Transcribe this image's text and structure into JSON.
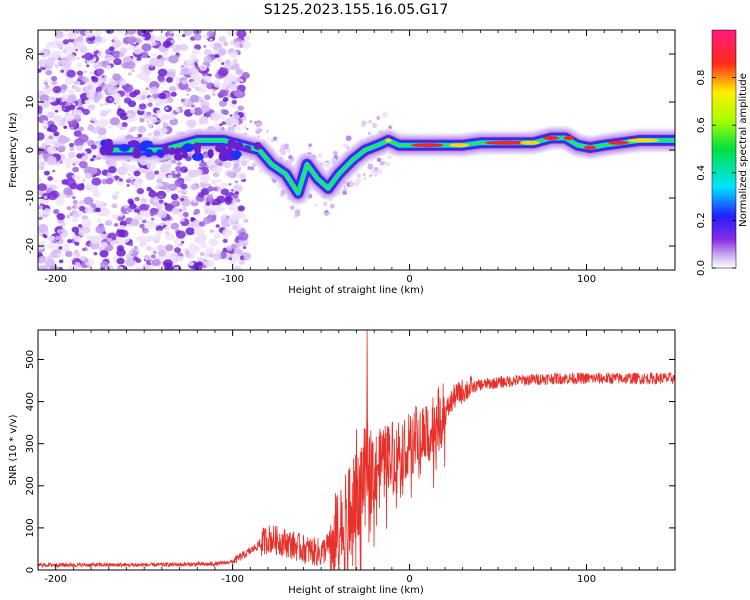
{
  "title": "S125.2023.155.16.05.G17",
  "colors": {
    "snr_line": "#e8302a",
    "axis": "#000000"
  },
  "chart_data": [
    {
      "type": "heatmap",
      "name": "spectrogram",
      "xlabel": "Height of straight line (km)",
      "ylabel": "Frequency (Hz)",
      "xlim": [
        -210,
        150
      ],
      "ylim": [
        -25,
        25
      ],
      "xticks": [
        -200,
        -100,
        0,
        100
      ],
      "yticks": [
        -20,
        -10,
        0,
        10,
        20
      ],
      "ridge": [
        [
          -170,
          0
        ],
        [
          -155,
          0
        ],
        [
          -140,
          0
        ],
        [
          -120,
          2
        ],
        [
          -105,
          2
        ],
        [
          -95,
          1
        ],
        [
          -85,
          0
        ],
        [
          -78,
          -3
        ],
        [
          -70,
          -5
        ],
        [
          -63,
          -9
        ],
        [
          -58,
          -3
        ],
        [
          -52,
          -6
        ],
        [
          -46,
          -8
        ],
        [
          -40,
          -5
        ],
        [
          -32,
          -2
        ],
        [
          -25,
          0
        ],
        [
          -18,
          1
        ],
        [
          -12,
          2
        ],
        [
          -6,
          1
        ],
        [
          0,
          1
        ],
        [
          10,
          1
        ],
        [
          20,
          1
        ],
        [
          30,
          1
        ],
        [
          40,
          1.5
        ],
        [
          50,
          1.5
        ],
        [
          60,
          1.5
        ],
        [
          70,
          1.5
        ],
        [
          80,
          2.5
        ],
        [
          88,
          2.5
        ],
        [
          95,
          1
        ],
        [
          102,
          0.5
        ],
        [
          110,
          1
        ],
        [
          120,
          1.5
        ],
        [
          130,
          2
        ],
        [
          140,
          2
        ],
        [
          150,
          2
        ]
      ],
      "noise_region": [
        -210,
        -100
      ],
      "colorbar": {
        "label": "Normalized spectral amplitude",
        "ticks": [
          "0.0",
          "0.2",
          "0.4",
          "0.6",
          "0.8"
        ],
        "range": [
          0,
          1
        ]
      }
    },
    {
      "type": "line",
      "name": "snr",
      "xlabel": "Height of straight line (km)",
      "ylabel": "SNR (10 * v/v)",
      "xlim": [
        -210,
        150
      ],
      "ylim": [
        0,
        570
      ],
      "xticks": [
        -200,
        -100,
        0,
        100
      ],
      "yticks": [
        0,
        100,
        200,
        300,
        400,
        500
      ],
      "trend": [
        [
          -210,
          12
        ],
        [
          -150,
          12
        ],
        [
          -110,
          14
        ],
        [
          -100,
          20
        ],
        [
          -90,
          45
        ],
        [
          -80,
          75
        ],
        [
          -70,
          65
        ],
        [
          -60,
          50
        ],
        [
          -50,
          40
        ],
        [
          -40,
          85
        ],
        [
          -30,
          170
        ],
        [
          -25,
          240
        ],
        [
          -20,
          245
        ],
        [
          -10,
          280
        ],
        [
          0,
          300
        ],
        [
          10,
          330
        ],
        [
          20,
          370
        ],
        [
          25,
          410
        ],
        [
          30,
          425
        ],
        [
          40,
          440
        ],
        [
          60,
          450
        ],
        [
          80,
          455
        ],
        [
          100,
          455
        ],
        [
          150,
          455
        ]
      ],
      "spikes": [
        [
          -24,
          570
        ],
        [
          -30,
          335
        ],
        [
          -34,
          240
        ],
        [
          -12,
          340
        ],
        [
          -15,
          320
        ]
      ]
    }
  ]
}
